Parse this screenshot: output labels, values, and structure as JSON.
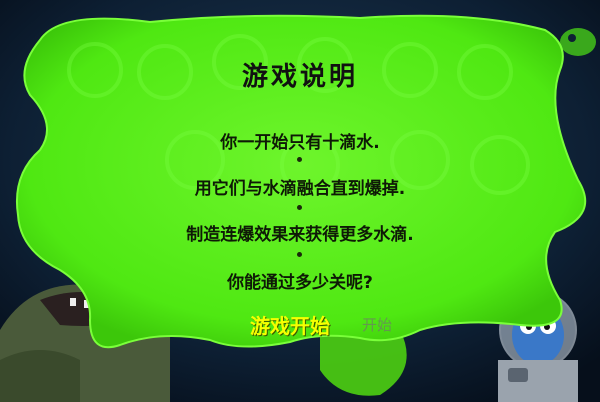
{
  "dialog": {
    "title": "游戏说明",
    "lines": [
      "你一开始只有十滴水.",
      "用它们与水滴融合直到爆掉.",
      "制造连爆效果来获得更多水滴.",
      "你能通过多少关呢?"
    ],
    "start_label": "游戏开始",
    "start_ghost_label": "开始"
  },
  "colors": {
    "slime": "#5cf21a",
    "slime_edge": "#7aff3a",
    "start_text": "#f6ff00",
    "background": "#0b1a2c"
  }
}
